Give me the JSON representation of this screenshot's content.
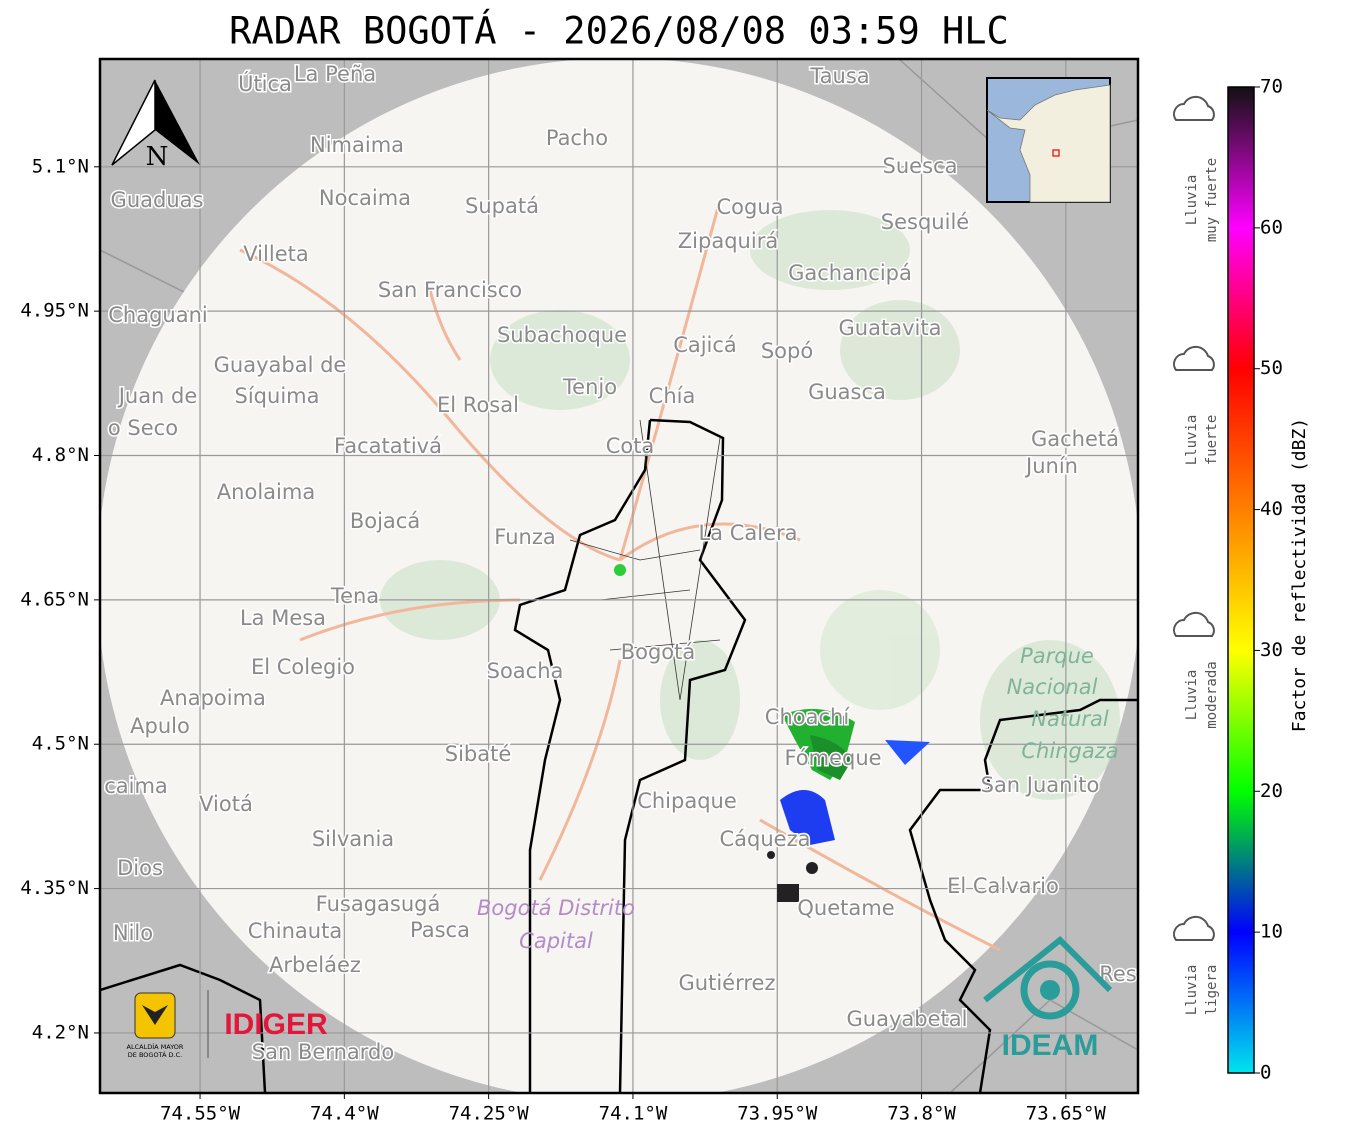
{
  "title": "RADAR BOGOTÁ - 2026/08/08 03:59 HLC",
  "map": {
    "xlim": [
      -74.654,
      -73.575
    ],
    "ylim": [
      4.1376,
      5.212
    ],
    "xticks": [
      {
        "value": -74.55,
        "label": "74.55°W"
      },
      {
        "value": -74.4,
        "label": "74.4°W"
      },
      {
        "value": -74.25,
        "label": "74.25°W"
      },
      {
        "value": -74.1,
        "label": "74.1°W"
      },
      {
        "value": -73.95,
        "label": "73.95°W"
      },
      {
        "value": -73.8,
        "label": "73.8°W"
      },
      {
        "value": -73.65,
        "label": "73.65°W"
      }
    ],
    "yticks": [
      {
        "value": 5.1,
        "label": "5.1°N"
      },
      {
        "value": 4.95,
        "label": "4.95°N"
      },
      {
        "value": 4.8,
        "label": "4.8°N"
      },
      {
        "value": 4.65,
        "label": "4.65°N"
      },
      {
        "value": 4.5,
        "label": "4.5°N"
      },
      {
        "value": 4.35,
        "label": "4.35°N"
      },
      {
        "value": 4.2,
        "label": "4.2°N"
      }
    ],
    "grid": true,
    "north": "N",
    "places": [
      "Útica",
      "La Peña",
      "Tausa",
      "Pacho",
      "Nimaima",
      "Guaduas",
      "Nocaima",
      "Supatá",
      "Cogua",
      "Suesca",
      "Sesquilé",
      "Zipaquirá",
      "Villeta",
      "Gachancipá",
      "San Francisco",
      "Chaguani",
      "Guatavita",
      "Subachoque",
      "Cajicá",
      "Sopó",
      "Guayabal de",
      "Síquima",
      "Juan de",
      "Tenjo",
      "Chía",
      "Guasca",
      "El Rosal",
      "o Seco",
      "Gachetá",
      "Junín",
      "Facatativá",
      "Cota",
      "Anolaima",
      "Bojacá",
      "Funza",
      "La Calera",
      "Tena",
      "La Mesa",
      "Bogotá",
      "Soacha",
      "El Colegio",
      "Anapoima",
      "Apulo",
      "Choachí",
      "Fómeque",
      "Sibaté",
      "San Juanito",
      "caima",
      "Viotá",
      "Chipaque",
      "Cáqueza",
      "Silvania",
      "Dios",
      "El Calvario",
      "Fusagasugá",
      "Quetame",
      "Nilo",
      "Chinauta",
      "Pasca",
      "Arbeláez",
      "Gutiérrez",
      "Res",
      "Guayabetal",
      "San Bernardo"
    ],
    "parks": [
      "Parque",
      "Nacional",
      "Natural",
      "Chingaza",
      "Bogotá Distrito",
      "Capital"
    ],
    "logos": {
      "alcaldia": [
        "ALCALDÍA MAYOR",
        "DE BOGOTÁ D.C."
      ],
      "idiger": "IDIGER",
      "ideam": "IDEAM"
    }
  },
  "colorbar": {
    "label": "Factor de reflectividad (dBZ)",
    "lim": [
      0,
      70
    ],
    "ticks": [
      0,
      10,
      20,
      30,
      40,
      50,
      60,
      70
    ],
    "colors": [
      "#00e5ee",
      "#0000ff",
      "#00ff00",
      "#ffff00",
      "#ff7f00",
      "#ff0000",
      "#ff00ff",
      "#111111"
    ],
    "categories": [
      [
        "Lluvia",
        "muy fuerte"
      ],
      [
        "Lluvia",
        "fuerte"
      ],
      [
        "Lluvia",
        "moderada"
      ],
      [
        "Lluvia",
        "ligera"
      ]
    ]
  }
}
